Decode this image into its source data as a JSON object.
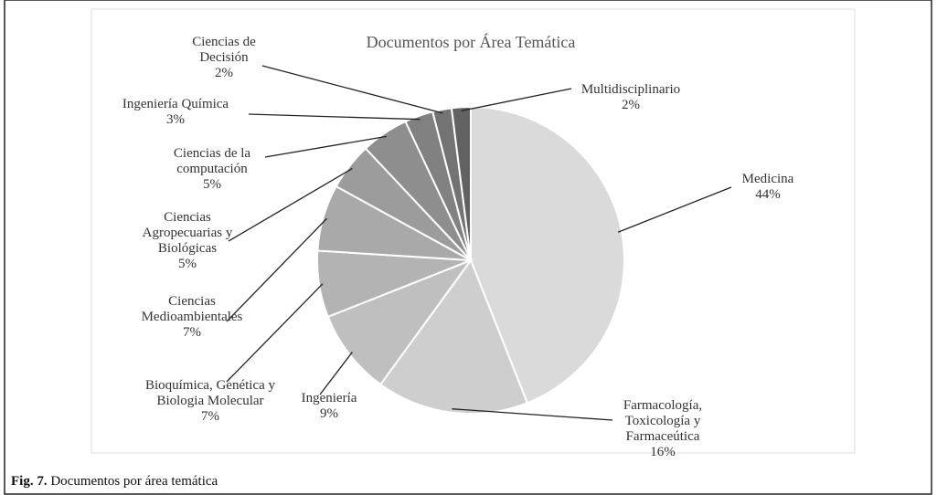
{
  "chart_data": {
    "type": "pie",
    "title": "Documentos por Área Temática",
    "categories": [
      "Medicina",
      "Farmacología, Toxicología y Farmaceútica",
      "Ingeniería",
      "Bioquímica, Genética y Biologia Molecular",
      "Ciencias Medioambientales",
      "Ciencias Agropecuarias y Biológicas",
      "Ciencias de la computación",
      "Ingeniería Química",
      "Ciencias de Decisión",
      "Multidisciplinario"
    ],
    "values": [
      44,
      16,
      9,
      7,
      7,
      5,
      5,
      3,
      2,
      2
    ],
    "value_labels": [
      "44%",
      "16%",
      "9%",
      "7%",
      "7%",
      "5%",
      "5%",
      "3%",
      "2%",
      "2%"
    ],
    "colors": [
      "#dadada",
      "#cecece",
      "#bfbfbf",
      "#b3b3b3",
      "#a9a9a9",
      "#9c9c9c",
      "#8e8e8e",
      "#818181",
      "#737373",
      "#626262"
    ]
  },
  "caption_label": "Fig. 7.",
  "caption": "Documentos por área temática"
}
